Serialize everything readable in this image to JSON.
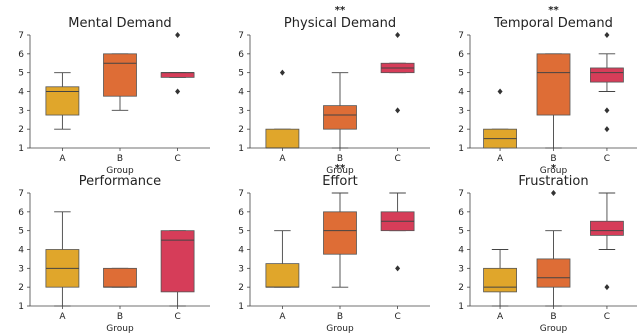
{
  "chart_data": [
    {
      "type": "box",
      "title": "Mental Demand",
      "significance": "",
      "xlabel": "Group",
      "ylabel": "",
      "ylim": [
        1,
        7
      ],
      "yticks": [
        1,
        2,
        3,
        4,
        5,
        6,
        7
      ],
      "categories": [
        "A",
        "B",
        "C"
      ],
      "boxes": [
        {
          "q1": 2.75,
          "median": 4.0,
          "q3": 4.25,
          "whisker_low": 2.0,
          "whisker_high": 5.0,
          "outliers": []
        },
        {
          "q1": 3.75,
          "median": 5.5,
          "q3": 6.0,
          "whisker_low": 3.0,
          "whisker_high": 6.0,
          "outliers": []
        },
        {
          "q1": 4.75,
          "median": 5.0,
          "q3": 5.0,
          "whisker_low": 4.75,
          "whisker_high": 5.0,
          "outliers": [
            7.0,
            4.0
          ]
        }
      ]
    },
    {
      "type": "box",
      "title": "Physical Demand",
      "significance": "**",
      "xlabel": "Group",
      "ylabel": "",
      "ylim": [
        1,
        7
      ],
      "yticks": [
        1,
        2,
        3,
        4,
        5,
        6,
        7
      ],
      "categories": [
        "A",
        "B",
        "C"
      ],
      "boxes": [
        {
          "q1": 1.0,
          "median": 1.0,
          "q3": 2.0,
          "whisker_low": 1.0,
          "whisker_high": 2.0,
          "outliers": [
            5.0
          ]
        },
        {
          "q1": 2.0,
          "median": 2.75,
          "q3": 3.25,
          "whisker_low": 1.0,
          "whisker_high": 5.0,
          "outliers": []
        },
        {
          "q1": 5.0,
          "median": 5.25,
          "q3": 5.5,
          "whisker_low": 5.0,
          "whisker_high": 5.5,
          "outliers": [
            7.0,
            3.0
          ]
        }
      ]
    },
    {
      "type": "box",
      "title": "Temporal Demand",
      "significance": "**",
      "xlabel": "Group",
      "ylabel": "",
      "ylim": [
        1,
        7
      ],
      "yticks": [
        1,
        2,
        3,
        4,
        5,
        6,
        7
      ],
      "categories": [
        "A",
        "B",
        "C"
      ],
      "boxes": [
        {
          "q1": 1.0,
          "median": 1.5,
          "q3": 2.0,
          "whisker_low": 1.0,
          "whisker_high": 2.0,
          "outliers": [
            4.0
          ]
        },
        {
          "q1": 2.75,
          "median": 5.0,
          "q3": 6.0,
          "whisker_low": 1.0,
          "whisker_high": 6.0,
          "outliers": []
        },
        {
          "q1": 4.5,
          "median": 5.0,
          "q3": 5.25,
          "whisker_low": 4.0,
          "whisker_high": 6.0,
          "outliers": [
            7.0,
            3.0,
            2.0
          ]
        }
      ]
    },
    {
      "type": "box",
      "title": "Performance",
      "significance": "",
      "xlabel": "Group",
      "ylabel": "",
      "ylim": [
        1,
        7
      ],
      "yticks": [
        1,
        2,
        3,
        4,
        5,
        6,
        7
      ],
      "categories": [
        "A",
        "B",
        "C"
      ],
      "boxes": [
        {
          "q1": 2.0,
          "median": 3.0,
          "q3": 4.0,
          "whisker_low": 1.0,
          "whisker_high": 6.0,
          "outliers": []
        },
        {
          "q1": 2.0,
          "median": 2.0,
          "q3": 3.0,
          "whisker_low": 2.0,
          "whisker_high": 3.0,
          "outliers": []
        },
        {
          "q1": 1.75,
          "median": 4.5,
          "q3": 5.0,
          "whisker_low": 1.0,
          "whisker_high": 5.0,
          "outliers": []
        }
      ]
    },
    {
      "type": "box",
      "title": "Effort",
      "significance": "**",
      "xlabel": "Group",
      "ylabel": "",
      "ylim": [
        1,
        7
      ],
      "yticks": [
        1,
        2,
        3,
        4,
        5,
        6,
        7
      ],
      "categories": [
        "A",
        "B",
        "C"
      ],
      "boxes": [
        {
          "q1": 2.0,
          "median": 2.0,
          "q3": 3.25,
          "whisker_low": 2.0,
          "whisker_high": 5.0,
          "outliers": []
        },
        {
          "q1": 3.75,
          "median": 5.0,
          "q3": 6.0,
          "whisker_low": 2.0,
          "whisker_high": 7.0,
          "outliers": []
        },
        {
          "q1": 5.0,
          "median": 5.5,
          "q3": 6.0,
          "whisker_low": 5.0,
          "whisker_high": 7.0,
          "outliers": [
            3.0
          ]
        }
      ]
    },
    {
      "type": "box",
      "title": "Frustration",
      "significance": "*",
      "xlabel": "Group",
      "ylabel": "",
      "ylim": [
        1,
        7
      ],
      "yticks": [
        1,
        2,
        3,
        4,
        5,
        6,
        7
      ],
      "categories": [
        "A",
        "B",
        "C"
      ],
      "boxes": [
        {
          "q1": 1.75,
          "median": 2.0,
          "q3": 3.0,
          "whisker_low": 1.0,
          "whisker_high": 4.0,
          "outliers": []
        },
        {
          "q1": 2.0,
          "median": 2.5,
          "q3": 3.5,
          "whisker_low": 1.0,
          "whisker_high": 5.0,
          "outliers": [
            7.0
          ]
        },
        {
          "q1": 4.75,
          "median": 5.0,
          "q3": 5.5,
          "whisker_low": 4.0,
          "whisker_high": 7.0,
          "outliers": [
            2.0
          ]
        }
      ]
    }
  ],
  "colors": {
    "A": "#e0a62b",
    "B": "#de6d36",
    "C": "#d63d59",
    "axis": "#444444",
    "median": "#444444"
  }
}
